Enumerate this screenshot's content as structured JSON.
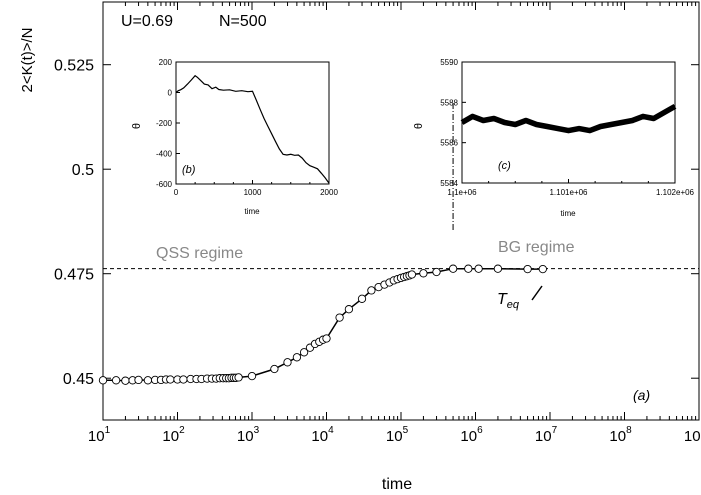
{
  "chart_data": [
    {
      "panel": "(a)",
      "type": "scatter",
      "ylabel": "2<K(t)>/N",
      "xlabel": "time",
      "xscale": "log",
      "xlim": [
        10,
        1000000000
      ],
      "ylim": [
        0.44,
        0.54
      ],
      "yticks": [
        0.45,
        0.475,
        0.5,
        0.525
      ],
      "ytick_labels": [
        "0.45",
        "0.475",
        "0.5",
        "0.525"
      ],
      "xtick_exponents": [
        "1",
        "2",
        "3",
        "4",
        "5",
        "6",
        "7",
        "8",
        "9"
      ],
      "xtick_base": "10",
      "params": {
        "u_label": "U=0.69",
        "n_label": "N=500"
      },
      "annotations": {
        "qss": "QSS regime",
        "bg": "BG regime",
        "teq_main": "T",
        "teq_sub": "eq",
        "panel_label": "(a)"
      },
      "hline_y": 0.4762,
      "vline_x": 500000,
      "points": [
        [
          10,
          0.4495
        ],
        [
          15,
          0.4495
        ],
        [
          20,
          0.4494
        ],
        [
          25,
          0.4495
        ],
        [
          30,
          0.4496
        ],
        [
          40,
          0.4495
        ],
        [
          50,
          0.4496
        ],
        [
          60,
          0.4496
        ],
        [
          70,
          0.4497
        ],
        [
          80,
          0.4497
        ],
        [
          100,
          0.4497
        ],
        [
          120,
          0.4497
        ],
        [
          150,
          0.4498
        ],
        [
          180,
          0.4498
        ],
        [
          210,
          0.4498
        ],
        [
          250,
          0.4499
        ],
        [
          290,
          0.4499
        ],
        [
          330,
          0.4499
        ],
        [
          370,
          0.45
        ],
        [
          410,
          0.45
        ],
        [
          450,
          0.45
        ],
        [
          490,
          0.45
        ],
        [
          530,
          0.4501
        ],
        [
          570,
          0.4501
        ],
        [
          610,
          0.4501
        ],
        [
          660,
          0.4502
        ],
        [
          1000,
          0.4505
        ],
        [
          2000,
          0.4522
        ],
        [
          3000,
          0.4538
        ],
        [
          4000,
          0.455
        ],
        [
          5000,
          0.4562
        ],
        [
          6000,
          0.4573
        ],
        [
          7000,
          0.4582
        ],
        [
          8000,
          0.4587
        ],
        [
          9000,
          0.4592
        ],
        [
          10000,
          0.4595
        ],
        [
          15000,
          0.4645
        ],
        [
          20000,
          0.4665
        ],
        [
          30000,
          0.469
        ],
        [
          40000,
          0.471
        ],
        [
          50000,
          0.4718
        ],
        [
          60000,
          0.4724
        ],
        [
          70000,
          0.4729
        ],
        [
          80000,
          0.4734
        ],
        [
          90000,
          0.4737
        ],
        [
          100000,
          0.474
        ],
        [
          110000,
          0.4742
        ],
        [
          120000,
          0.4744
        ],
        [
          130000,
          0.4746
        ],
        [
          140000,
          0.4748
        ],
        [
          200000,
          0.4751
        ],
        [
          300000,
          0.4754
        ],
        [
          500000,
          0.4762
        ],
        [
          800000,
          0.4762
        ],
        [
          1100000,
          0.4762
        ],
        [
          2000000,
          0.4762
        ],
        [
          5000000,
          0.4761
        ],
        [
          8000000,
          0.4761
        ]
      ]
    },
    {
      "panel": "(b)",
      "type": "line",
      "ylabel": "θ",
      "xlabel": "time",
      "xlim": [
        0,
        2000
      ],
      "ylim": [
        -600,
        200
      ],
      "xticks": [
        0,
        1000,
        2000
      ],
      "xtick_labels": [
        "0",
        "1000",
        "2000"
      ],
      "yticks": [
        -600,
        -400,
        -200,
        0,
        200
      ],
      "ytick_labels": [
        "-600",
        "-400",
        "-200",
        "0",
        "200"
      ],
      "panel_label": "(b)",
      "x": [
        0,
        30,
        60,
        100,
        150,
        200,
        250,
        280,
        320,
        370,
        420,
        470,
        520,
        560,
        620,
        700,
        780,
        860,
        940,
        1000,
        1050,
        1100,
        1150,
        1200,
        1250,
        1300,
        1350,
        1400,
        1450,
        1500,
        1550,
        1600,
        1650,
        1700,
        1750,
        1800,
        1850,
        1900,
        1950,
        2000
      ],
      "y": [
        0,
        12,
        18,
        30,
        55,
        82,
        110,
        100,
        80,
        55,
        50,
        25,
        35,
        20,
        15,
        18,
        8,
        12,
        5,
        8,
        -50,
        -110,
        -170,
        -220,
        -270,
        -320,
        -370,
        -405,
        -410,
        -405,
        -412,
        -410,
        -430,
        -460,
        -480,
        -490,
        -500,
        -530,
        -560,
        -595
      ]
    },
    {
      "panel": "(c)",
      "type": "line",
      "ylabel": "θ",
      "xlabel": "time",
      "xlim": [
        1100000,
        1102000
      ],
      "ylim": [
        5584,
        5590
      ],
      "xticks": [
        1100000,
        1101000,
        1102000
      ],
      "xtick_labels": [
        "1.1e+06",
        "1.101e+06",
        "1.102e+06"
      ],
      "yticks": [
        5584,
        5586,
        5588,
        5590
      ],
      "ytick_labels": [
        "5584",
        "5586",
        "5588",
        "5590"
      ],
      "panel_label": "(c)",
      "x": [
        1100000,
        1100100,
        1100200,
        1100300,
        1100400,
        1100500,
        1100600,
        1100700,
        1100800,
        1100900,
        1101000,
        1101100,
        1101200,
        1101300,
        1101400,
        1101500,
        1101600,
        1101700,
        1101800,
        1101900,
        1102000
      ],
      "y": [
        5587.0,
        5587.3,
        5587.1,
        5587.2,
        5587.0,
        5586.9,
        5587.1,
        5586.9,
        5586.8,
        5586.7,
        5586.6,
        5586.7,
        5586.6,
        5586.8,
        5586.9,
        5587.0,
        5587.1,
        5587.3,
        5587.2,
        5587.5,
        5587.8
      ]
    }
  ]
}
